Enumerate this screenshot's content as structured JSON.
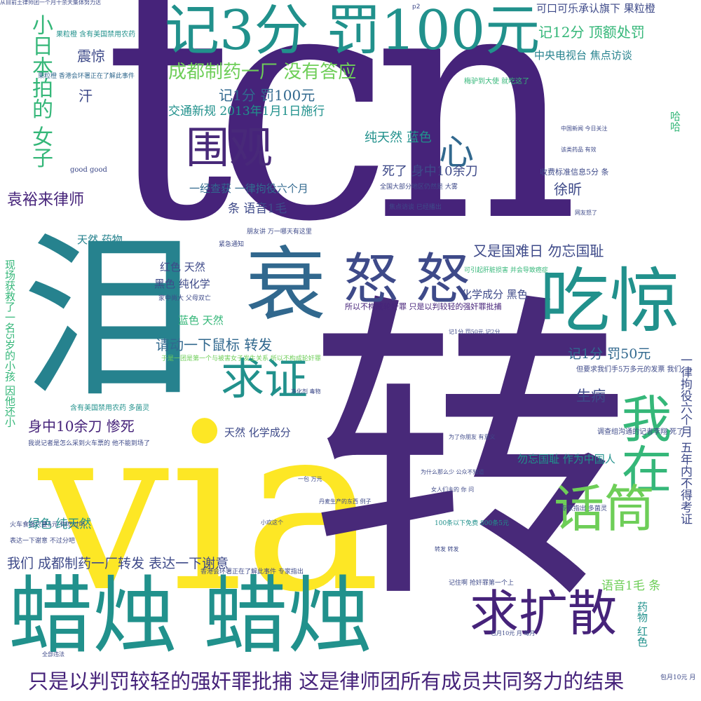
{
  "palette": {
    "purple": "#46237a",
    "purple2": "#482979",
    "indigo": "#3e4a89",
    "blue": "#31688e",
    "teal": "#26828e",
    "teal2": "#21918c",
    "green": "#35b779",
    "lime": "#6ece58",
    "yellowgreen": "#b5de2b",
    "yellow": "#fde725"
  },
  "words": {
    "tcn": "tcn",
    "via": "via",
    "zhuan": "转",
    "lei": "泪",
    "lazhu": "蜡烛 蜡烛",
    "shuai": "衰",
    "nunu": "怒 怒",
    "chijing": "吃惊",
    "ji3fen": "记3分 罚100元",
    "weiguan": "围观",
    "woxian": "我在",
    "huatong": "话筒",
    "qiukuosan": "求扩散",
    "qiuzheng": "求证",
    "xin": "心",
    "panjue": "只是以判罚较轻的强奸罪批捕 这是律师团所有成员共同努力的结果",
    "chengdu_zhiyao": "成都制药一厂 没有答应",
    "ji12fen": "记12分 顶额处罚",
    "kekou": "可口可乐承认旗下 果粒橙",
    "cctv": "中央电视台 焦点访谈",
    "ji1fen100": "记1分 罚100元",
    "jiaotong": "交通新规 2013年1月1日施行",
    "xiaoriben": "小日本拍的 女子",
    "yuanyulai": "袁裕来律师",
    "zhenjing": "震惊",
    "han": "汗",
    "chunlan": "纯天然 蓝色",
    "sile": "死了 身中10余刀",
    "yijing": "一经查获 一律拘役六个月",
    "tiaoyuyin": "条 语音1毛",
    "xuxin": "徐昕",
    "guonan": "又是国难日 勿忘国耻",
    "tianran_yaowu": "天然 药物",
    "hongse_tianran": "红色 天然",
    "heise_chunhua": "黑色 纯化学",
    "huaxue_hei": "化学成分 黑色",
    "lanse_tianran": "蓝色 天然",
    "qingdong": "请动一下鼠标 转发",
    "ji1fen50": "记1分 罚50元",
    "shengbing": "生病",
    "shenzhong": "身中10余刀 惨死",
    "tianran_huaxue": "天然 化学成分",
    "wangguochi": "勿忘国耻 作为中国人",
    "lvse": "绿色 纯天然",
    "women": "我们 成都制药一厂转发 表达一下谢意",
    "yuyin1mao": "语音1毛 条",
    "yaowu_hong": "药物 红色",
    "yilv_right": "一律拘役六个月 五年内不得考证",
    "haha": "哈哈",
    "goodgood": "good good",
    "shoufei": "收费标准信息5分 条",
    "xiannv": "现场获救了一名5岁的小孩 因他还小",
    "p2": "p2",
    "baoyue": "包月10元 月",
    "sm_1": "从目前土律师团一个月十余天集体努力达",
    "sm_2": "果粒橙 含有美国禁用农药",
    "sm_3": "果粒橙 香港会环署正在了解此事件",
    "sm_4": "含有美国禁用农药 多菌灵",
    "sm_5": "香港会环署正在了解此事件 专家指出",
    "sm_6": "所以不构成轮奸罪 只是以判较轻的强奸罪批捕",
    "sm_7": "梅驴到大使 就吃这了",
    "sm_8": "全国大部分地区仍然是 大雾",
    "sm_9": "焦点访谈 已经播出",
    "sm_10": "朋友讲 万一哪天有这里",
    "sm_11": "家中尚大 父母双亡",
    "sm_12": "于是一团是第一个与被害女子发生关系 所以不构成轮奸罪",
    "sm_13": "可引起肝脏损害 并会导致癌症",
    "sm_14": "但要求我们手5万多元的发票 我们",
    "sm_15": "调查组沟通的记者李翔 死了",
    "sm_16": "火车食饭只要5元 你吃过吗",
    "sm_17": "表达一下谢意 不过分吧",
    "sm_18": "我说记者是怎么采到火车票的 他不能到场了",
    "sm_19": "100条以下免费 800条5元",
    "sm_20": "专家指出 多菌灵",
    "sm_21": "记住啊 抢奸罪第一个上",
    "sm_22": "小欢这个",
    "sm_23": "丹麦生产的东西 例子",
    "sm_24": "净化剂 毒物",
    "sm_25": "一包 万元",
    "sm_26": "女人们主的 你 问",
    "sm_27": "为什么那么少 公众不知道",
    "sm_28": "包月10元 月 每月",
    "sm_29": "转发 转发",
    "sm_30": "为了你朋友 有意义",
    "sm_31": "中国新闻 今日关注",
    "sm_32": "该类药品 有效",
    "sm_33": "记1分 罚50元 记2分",
    "sm_34": "紧急通知",
    "sm_35": "全部违法",
    "sm_36": "网友怒了"
  }
}
